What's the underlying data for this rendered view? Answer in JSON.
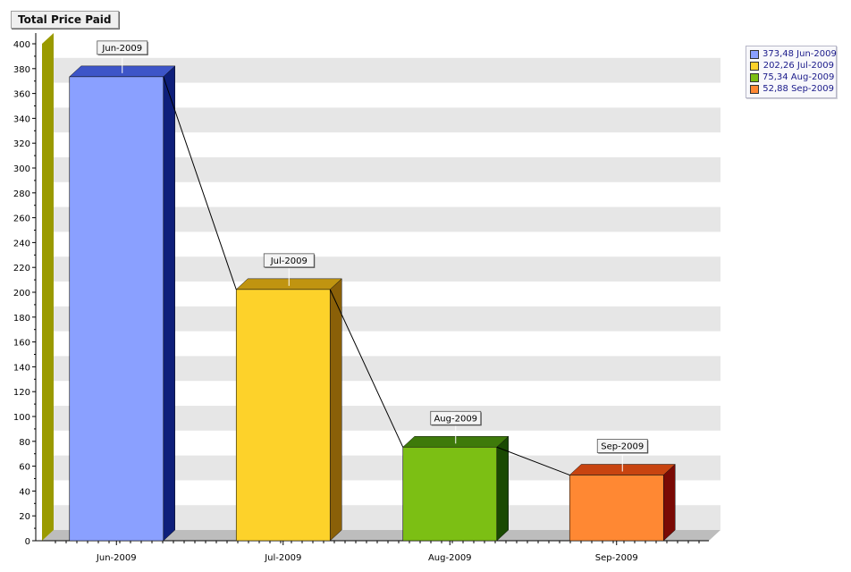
{
  "chart_data": {
    "type": "bar",
    "title": "Total Price Paid",
    "categories": [
      "Jun-2009",
      "Jul-2009",
      "Aug-2009",
      "Sep-2009"
    ],
    "values": [
      373.48,
      202.26,
      75.34,
      52.88
    ],
    "ylim": [
      0,
      400
    ],
    "ytick_step": 20,
    "grid": true,
    "legend_position": "top-right",
    "bar_labels": [
      "Jun-2009",
      "Jul-2009",
      "Aug-2009",
      "Sep-2009"
    ],
    "legend": [
      {
        "label": "373,48 Jun-2009",
        "color": "#8aa0ff"
      },
      {
        "label": "202,26 Jul-2009",
        "color": "#fdd22a"
      },
      {
        "label": "75,34 Aug-2009",
        "color": "#7cbf14"
      },
      {
        "label": "52,88 Sep-2009",
        "color": "#ff8833"
      }
    ],
    "colors": [
      {
        "front": "#8aa0ff",
        "top": "#3d55c8",
        "side": "#0e1f7a"
      },
      {
        "front": "#fdd22a",
        "top": "#c09410",
        "side": "#8a6008"
      },
      {
        "front": "#7cbf14",
        "top": "#3e7a0a",
        "side": "#1a4a02"
      },
      {
        "front": "#ff8833",
        "top": "#c84410",
        "side": "#7a0a05"
      }
    ],
    "connector_line": true
  }
}
